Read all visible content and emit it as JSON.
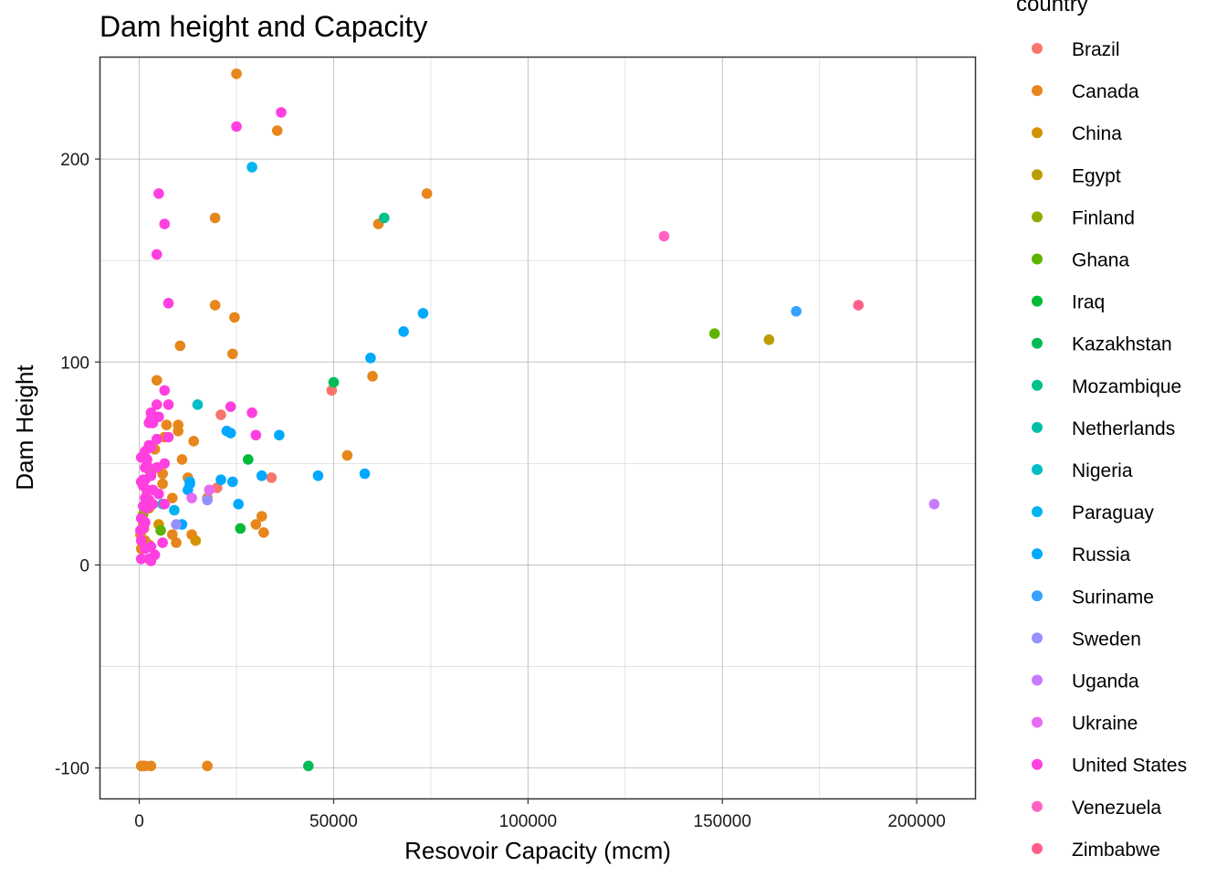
{
  "chart_data": {
    "type": "scatter",
    "title": "Dam height and Capacity",
    "xlabel": "Resovoir Capacity (mcm)",
    "ylabel": "Dam Height",
    "xlim": [
      -10000,
      215000
    ],
    "ylim": [
      -115,
      250
    ],
    "xticks": [
      0,
      50000,
      100000,
      150000,
      200000
    ],
    "xtick_labels": [
      "0",
      "50000",
      "100000",
      "150000",
      "200000"
    ],
    "yticks": [
      -100,
      0,
      100,
      200
    ],
    "ytick_labels": [
      "-100",
      "0",
      "100",
      "200"
    ],
    "grid": true,
    "legend_title": "country",
    "legend_position": "right",
    "series": [
      {
        "name": "Brazil",
        "color": "#F8766D",
        "points": [
          [
            21000,
            74
          ],
          [
            49500,
            86
          ],
          [
            34000,
            43
          ],
          [
            20000,
            38
          ]
        ]
      },
      {
        "name": "Canada",
        "color": "#E7861B",
        "points": [
          [
            25000,
            242
          ],
          [
            35500,
            214
          ],
          [
            74000,
            183
          ],
          [
            19500,
            171
          ],
          [
            61500,
            168
          ],
          [
            19500,
            128
          ],
          [
            24500,
            122
          ],
          [
            10500,
            108
          ],
          [
            24000,
            104
          ],
          [
            60000,
            93
          ],
          [
            4500,
            91
          ],
          [
            53500,
            54
          ],
          [
            14000,
            61
          ],
          [
            11000,
            52
          ],
          [
            7000,
            69
          ],
          [
            10000,
            69
          ],
          [
            10000,
            66
          ],
          [
            6500,
            63
          ],
          [
            4000,
            57
          ],
          [
            6000,
            45
          ],
          [
            3000,
            45
          ],
          [
            6000,
            40
          ],
          [
            12500,
            43
          ],
          [
            8500,
            33
          ],
          [
            17500,
            33
          ],
          [
            31500,
            24
          ],
          [
            30000,
            20
          ],
          [
            32000,
            16
          ],
          [
            8500,
            15
          ],
          [
            9500,
            11
          ],
          [
            13500,
            15
          ],
          [
            1000,
            20
          ],
          [
            500,
            17
          ],
          [
            1500,
            12
          ],
          [
            500,
            8
          ],
          [
            2500,
            10
          ],
          [
            800,
            24
          ],
          [
            1200,
            18
          ],
          [
            300,
            15
          ],
          [
            500,
            -99
          ],
          [
            1000,
            -99
          ],
          [
            1500,
            -99
          ],
          [
            3000,
            -99
          ],
          [
            17500,
            -99
          ]
        ]
      },
      {
        "name": "China",
        "color": "#D39200",
        "points": [
          [
            5000,
            20
          ],
          [
            14500,
            12
          ],
          [
            2000,
            36
          ],
          [
            1000,
            11
          ],
          [
            2500,
            28
          ]
        ]
      },
      {
        "name": "Egypt",
        "color": "#BA9E00",
        "points": [
          [
            162000,
            111
          ]
        ]
      },
      {
        "name": "Finland",
        "color": "#93AA00",
        "points": [
          [
            2500,
            47
          ],
          [
            1000,
            25
          ]
        ]
      },
      {
        "name": "Ghana",
        "color": "#5EB300",
        "points": [
          [
            148000,
            114
          ],
          [
            5500,
            17
          ]
        ]
      },
      {
        "name": "Iraq",
        "color": "#00BA38",
        "points": [
          [
            28000,
            52
          ],
          [
            26000,
            18
          ]
        ]
      },
      {
        "name": "Kazakhstan",
        "color": "#00BC56",
        "points": [
          [
            50000,
            90
          ],
          [
            43500,
            -99
          ]
        ]
      },
      {
        "name": "Mozambique",
        "color": "#00C08B",
        "points": [
          [
            63000,
            171
          ]
        ]
      },
      {
        "name": "Netherlands",
        "color": "#00BFAA",
        "points": [
          [
            1000,
            29
          ]
        ]
      },
      {
        "name": "Nigeria",
        "color": "#00BFC4",
        "points": [
          [
            15000,
            79
          ],
          [
            6000,
            30
          ]
        ]
      },
      {
        "name": "Paraguay",
        "color": "#00B4EF",
        "points": [
          [
            29000,
            196
          ],
          [
            13000,
            41
          ],
          [
            9000,
            27
          ]
        ]
      },
      {
        "name": "Russia",
        "color": "#00A9FF",
        "points": [
          [
            73000,
            124
          ],
          [
            68000,
            115
          ],
          [
            59500,
            102
          ],
          [
            22500,
            66
          ],
          [
            23500,
            65
          ],
          [
            36000,
            64
          ],
          [
            46000,
            44
          ],
          [
            58000,
            45
          ],
          [
            31500,
            44
          ],
          [
            21000,
            42
          ],
          [
            24000,
            41
          ],
          [
            12500,
            37
          ],
          [
            25500,
            30
          ],
          [
            13000,
            40
          ],
          [
            11000,
            20
          ]
        ]
      },
      {
        "name": "Suriname",
        "color": "#35A2FF",
        "points": [
          [
            169000,
            125
          ]
        ]
      },
      {
        "name": "Sweden",
        "color": "#9590FF",
        "points": [
          [
            9500,
            20
          ],
          [
            17500,
            32
          ]
        ]
      },
      {
        "name": "Uganda",
        "color": "#C77CFF",
        "points": [
          [
            204500,
            30
          ]
        ]
      },
      {
        "name": "Ukraine",
        "color": "#E76BF3",
        "points": [
          [
            18000,
            37
          ],
          [
            13500,
            33
          ]
        ]
      },
      {
        "name": "United States",
        "color": "#FF3FE0",
        "points": [
          [
            36500,
            223
          ],
          [
            25000,
            216
          ],
          [
            5000,
            183
          ],
          [
            6500,
            168
          ],
          [
            4500,
            153
          ],
          [
            7500,
            129
          ],
          [
            23500,
            78
          ],
          [
            29000,
            75
          ],
          [
            30000,
            64
          ],
          [
            6500,
            86
          ],
          [
            7500,
            79
          ],
          [
            4500,
            79
          ],
          [
            3000,
            75
          ],
          [
            5000,
            73
          ],
          [
            3000,
            72
          ],
          [
            3500,
            70
          ],
          [
            2500,
            70
          ],
          [
            7500,
            63
          ],
          [
            4500,
            62
          ],
          [
            2500,
            59
          ],
          [
            3000,
            58
          ],
          [
            1500,
            56
          ],
          [
            2000,
            52
          ],
          [
            6500,
            50
          ],
          [
            500,
            53
          ],
          [
            1000,
            53
          ],
          [
            1500,
            48
          ],
          [
            2000,
            49
          ],
          [
            4500,
            48
          ],
          [
            3000,
            44
          ],
          [
            500,
            41
          ],
          [
            1000,
            42
          ],
          [
            1500,
            42
          ],
          [
            1000,
            39
          ],
          [
            2000,
            37
          ],
          [
            3500,
            37
          ],
          [
            5000,
            35
          ],
          [
            1500,
            33
          ],
          [
            2500,
            32
          ],
          [
            3500,
            30
          ],
          [
            6500,
            30
          ],
          [
            1000,
            29
          ],
          [
            2000,
            28
          ],
          [
            500,
            23
          ],
          [
            1500,
            21
          ],
          [
            1000,
            18
          ],
          [
            300,
            17
          ],
          [
            500,
            12
          ],
          [
            3000,
            9
          ],
          [
            1500,
            8
          ],
          [
            4000,
            5
          ],
          [
            500,
            3
          ],
          [
            2500,
            3
          ],
          [
            3000,
            2
          ],
          [
            6000,
            11
          ]
        ]
      },
      {
        "name": "Venezuela",
        "color": "#FF61C3",
        "points": [
          [
            135000,
            162
          ]
        ]
      },
      {
        "name": "Zimbabwe",
        "color": "#FF5E8A",
        "points": [
          [
            185000,
            128
          ]
        ]
      }
    ]
  }
}
